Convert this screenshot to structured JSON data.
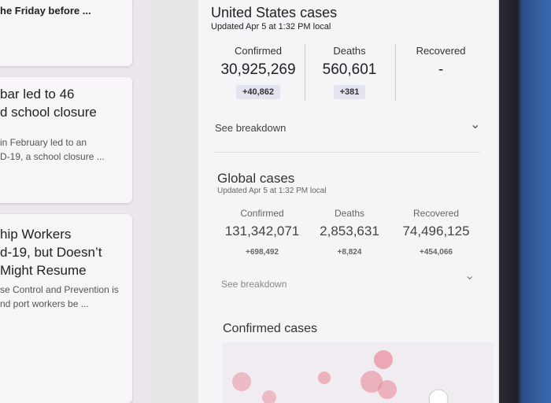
{
  "news": [
    {
      "lines": [
        "he Friday before ..."
      ]
    },
    {
      "title": [
        "bar led to 46",
        "d school closure"
      ],
      "snippet": [
        "in February led to an",
        "D-19, a school closure ..."
      ]
    },
    {
      "title": [
        "hip Workers",
        "d-19, but Doesn’t",
        "Might Resume"
      ],
      "snippet": [
        "se Control and Prevention is",
        "nd port workers be ..."
      ]
    }
  ],
  "us": {
    "title": "United States cases",
    "updated": "Updated Apr 5 at 1:32 PM local",
    "stats": [
      {
        "label": "Confirmed",
        "value": "30,925,269",
        "change": "+40,862"
      },
      {
        "label": "Deaths",
        "value": "560,601",
        "change": "+381"
      },
      {
        "label": "Recovered",
        "value": "-"
      }
    ],
    "breakdown": "See breakdown"
  },
  "global": {
    "title": "Global cases",
    "updated": "Updated Apr 5 at 1:32 PM local",
    "stats": [
      {
        "label": "Confirmed",
        "value": "131,342,071",
        "change": "+698,492"
      },
      {
        "label": "Deaths",
        "value": "2,853,631",
        "change": "+8,824"
      },
      {
        "label": "Recovered",
        "value": "74,496,125",
        "change": "+454,066"
      }
    ],
    "breakdown": "See breakdown"
  },
  "map": {
    "title": "Confirmed cases"
  }
}
